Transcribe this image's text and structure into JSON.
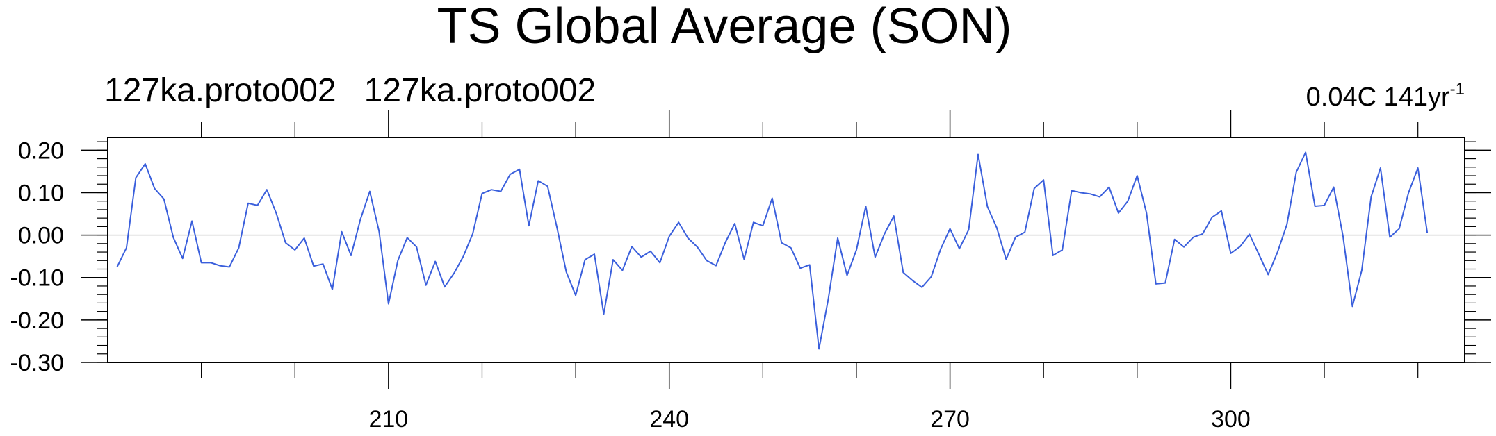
{
  "chart_data": {
    "type": "line",
    "title": "TS Global Average (SON)",
    "subtitle_left": "127ka.proto002   127ka.proto002",
    "trend_label": "0.04C 141yr",
    "trend_label_sup": "-1",
    "xlabel": "",
    "ylabel": "",
    "xlim": [
      180,
      325
    ],
    "ylim": [
      -0.3,
      0.23
    ],
    "x_major_ticks": [
      210,
      240,
      270,
      300
    ],
    "x_minor_ticks": [
      190,
      200,
      220,
      230,
      250,
      260,
      280,
      290,
      310,
      320
    ],
    "y_major_ticks": [
      -0.3,
      -0.2,
      -0.1,
      0.0,
      0.1,
      0.2
    ],
    "y_tick_labels": [
      "-0.30",
      "-0.20",
      "-0.10",
      "0.00",
      "0.10",
      "0.20"
    ],
    "x_tick_labels": [
      "210",
      "240",
      "270",
      "300"
    ],
    "reference_line": 0.0,
    "grid": false,
    "series": [
      {
        "color": "#3a5fdc",
        "x_start": 181,
        "x_step": 1,
        "values": [
          -0.075,
          -0.03,
          0.135,
          0.168,
          0.11,
          0.085,
          -0.005,
          -0.055,
          0.033,
          -0.065,
          -0.065,
          -0.072,
          -0.075,
          -0.03,
          0.075,
          0.07,
          0.107,
          0.052,
          -0.018,
          -0.035,
          -0.007,
          -0.073,
          -0.068,
          -0.128,
          0.008,
          -0.048,
          0.037,
          0.103,
          0.008,
          -0.162,
          -0.06,
          -0.006,
          -0.028,
          -0.118,
          -0.062,
          -0.122,
          -0.09,
          -0.05,
          0.003,
          0.098,
          0.107,
          0.103,
          0.143,
          0.155,
          0.022,
          0.128,
          0.115,
          0.018,
          -0.087,
          -0.142,
          -0.058,
          -0.045,
          -0.186,
          -0.058,
          -0.083,
          -0.027,
          -0.052,
          -0.038,
          -0.065,
          -0.003,
          0.03,
          -0.007,
          -0.028,
          -0.06,
          -0.072,
          -0.017,
          0.027,
          -0.057,
          0.03,
          0.022,
          0.087,
          -0.018,
          -0.03,
          -0.078,
          -0.07,
          -0.268,
          -0.15,
          -0.007,
          -0.095,
          -0.035,
          0.068,
          -0.052,
          0.003,
          0.045,
          -0.088,
          -0.107,
          -0.123,
          -0.098,
          -0.033,
          0.015,
          -0.032,
          0.013,
          0.19,
          0.067,
          0.017,
          -0.057,
          -0.005,
          0.007,
          0.11,
          0.13,
          -0.048,
          -0.035,
          0.105,
          0.1,
          0.097,
          0.09,
          0.113,
          0.052,
          0.08,
          0.14,
          0.052,
          -0.115,
          -0.113,
          -0.01,
          -0.028,
          -0.005,
          0.003,
          0.042,
          0.057,
          -0.043,
          -0.027,
          0.002,
          -0.045,
          -0.093,
          -0.04,
          0.025,
          0.148,
          0.195,
          0.068,
          0.07,
          0.113,
          -0.003,
          -0.168,
          -0.083,
          0.09,
          0.158,
          -0.005,
          0.015,
          0.1,
          0.158,
          0.005
        ]
      }
    ]
  }
}
